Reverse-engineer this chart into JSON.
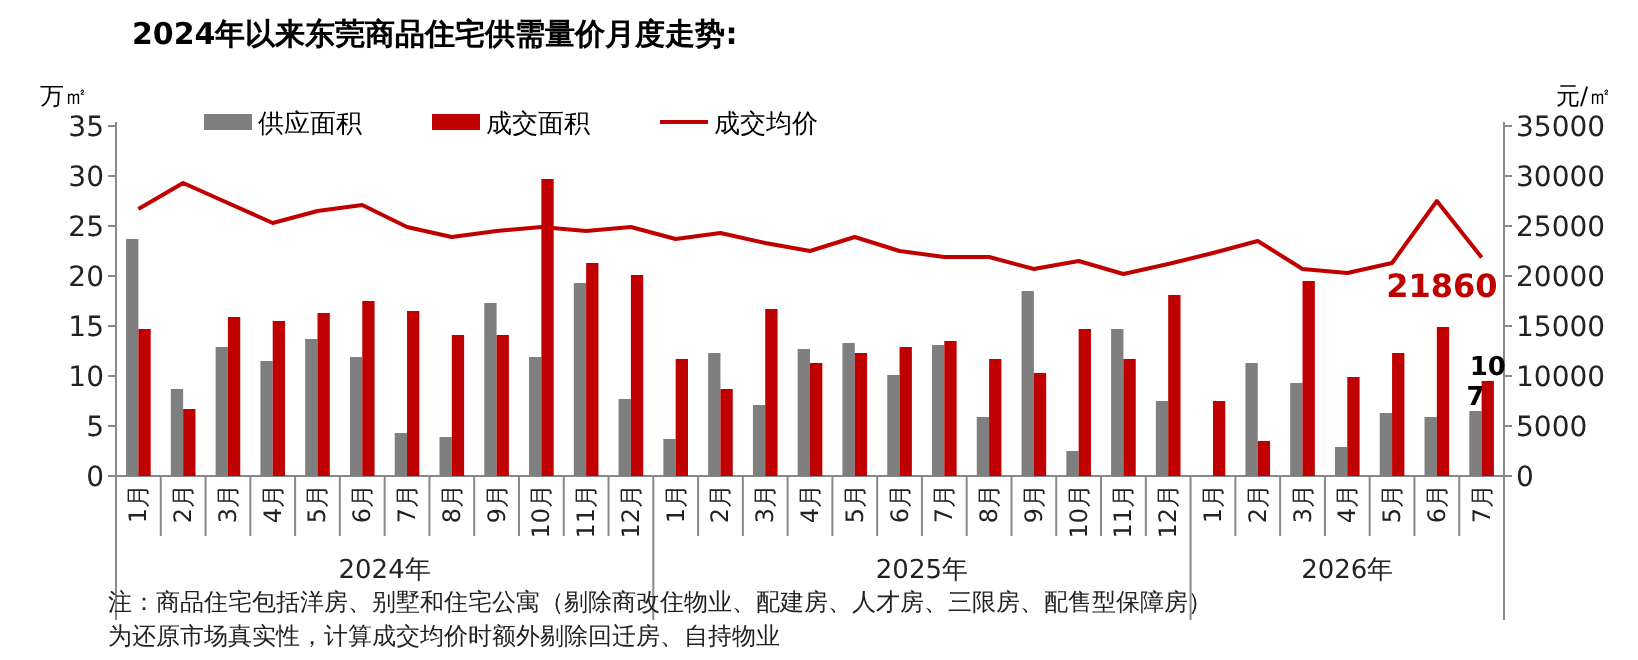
{
  "chart_data": {
    "type": "bar",
    "title": "2024年以来东莞商品住宅供需量价月度走势:",
    "ylabel": "万㎡",
    "y2label": "元/㎡",
    "categories": [
      "1月",
      "2月",
      "3月",
      "4月",
      "5月",
      "6月",
      "7月",
      "8月",
      "9月",
      "10月",
      "11月",
      "12月",
      "1月",
      "2月",
      "3月",
      "4月",
      "5月",
      "6月",
      "7月",
      "8月",
      "9月",
      "10月",
      "11月",
      "12月",
      "1月",
      "2月",
      "3月",
      "4月",
      "5月",
      "6月",
      "7月"
    ],
    "series": [
      {
        "name": "供应面积",
        "color": "#7f7f7f",
        "values": [
          23.7,
          8.7,
          12.9,
          11.5,
          13.7,
          11.9,
          4.3,
          3.9,
          17.3,
          11.9,
          19.3,
          7.7,
          3.7,
          12.3,
          7.1,
          12.7,
          13.3,
          10.1,
          13.1,
          5.9,
          18.5,
          2.5,
          14.7,
          7.5,
          0,
          11.3,
          9.3,
          2.9,
          6.3,
          5.9,
          6.5
        ],
        "value_labels": [
          null,
          null,
          null,
          null,
          null,
          null,
          null,
          null,
          null,
          null,
          null,
          null,
          null,
          null,
          null,
          null,
          null,
          null,
          null,
          null,
          null,
          null,
          null,
          null,
          null,
          null,
          null,
          null,
          null,
          null,
          "7"
        ]
      },
      {
        "name": "成交面积",
        "color": "#c00000",
        "values": [
          14.7,
          6.7,
          15.9,
          15.5,
          16.3,
          17.5,
          16.5,
          14.1,
          14.1,
          29.7,
          21.3,
          20.1,
          11.7,
          8.7,
          16.7,
          11.3,
          12.3,
          12.9,
          13.5,
          11.7,
          10.3,
          14.7,
          11.7,
          18.1,
          7.5,
          3.5,
          19.5,
          9.9,
          12.3,
          14.9,
          9.5
        ],
        "value_labels": [
          null,
          null,
          null,
          null,
          null,
          null,
          null,
          null,
          null,
          null,
          null,
          null,
          null,
          null,
          null,
          null,
          null,
          null,
          null,
          null,
          null,
          null,
          null,
          null,
          null,
          null,
          null,
          null,
          null,
          null,
          "10"
        ]
      },
      {
        "name": "成交均价",
        "type": "line",
        "axis": "y2",
        "color": "#c00000",
        "values": [
          26700,
          29300,
          27300,
          25300,
          26500,
          27100,
          24900,
          23900,
          24500,
          24900,
          24500,
          24900,
          23700,
          24300,
          23300,
          22500,
          23900,
          22500,
          21900,
          21900,
          20700,
          21500,
          20200,
          21200,
          22300,
          23500,
          20700,
          20300,
          21300,
          27500,
          21860
        ],
        "value_labels": [
          null,
          null,
          null,
          null,
          null,
          null,
          null,
          null,
          null,
          null,
          null,
          null,
          null,
          null,
          null,
          null,
          null,
          null,
          null,
          null,
          null,
          null,
          null,
          null,
          null,
          null,
          null,
          null,
          null,
          null,
          "21860"
        ]
      }
    ],
    "ylim": [
      0,
      35
    ],
    "yticks": [
      0,
      5,
      10,
      15,
      20,
      25,
      30,
      35
    ],
    "y2lim": [
      0,
      35000
    ],
    "y2ticks": [
      0,
      5000,
      10000,
      15000,
      20000,
      25000,
      30000,
      35000
    ],
    "legend": "top",
    "grid": false,
    "annotations": [
      "2024年",
      "2025年",
      "2026年",
      "注：商品住宅包括洋房、别墅和住宅公寓（剔除商改住物业、配建房、人才房、三限房、配售型保障房）",
      "为还原市场真实性，计算成交均价时额外剔除回迁房、自持物业"
    ]
  }
}
